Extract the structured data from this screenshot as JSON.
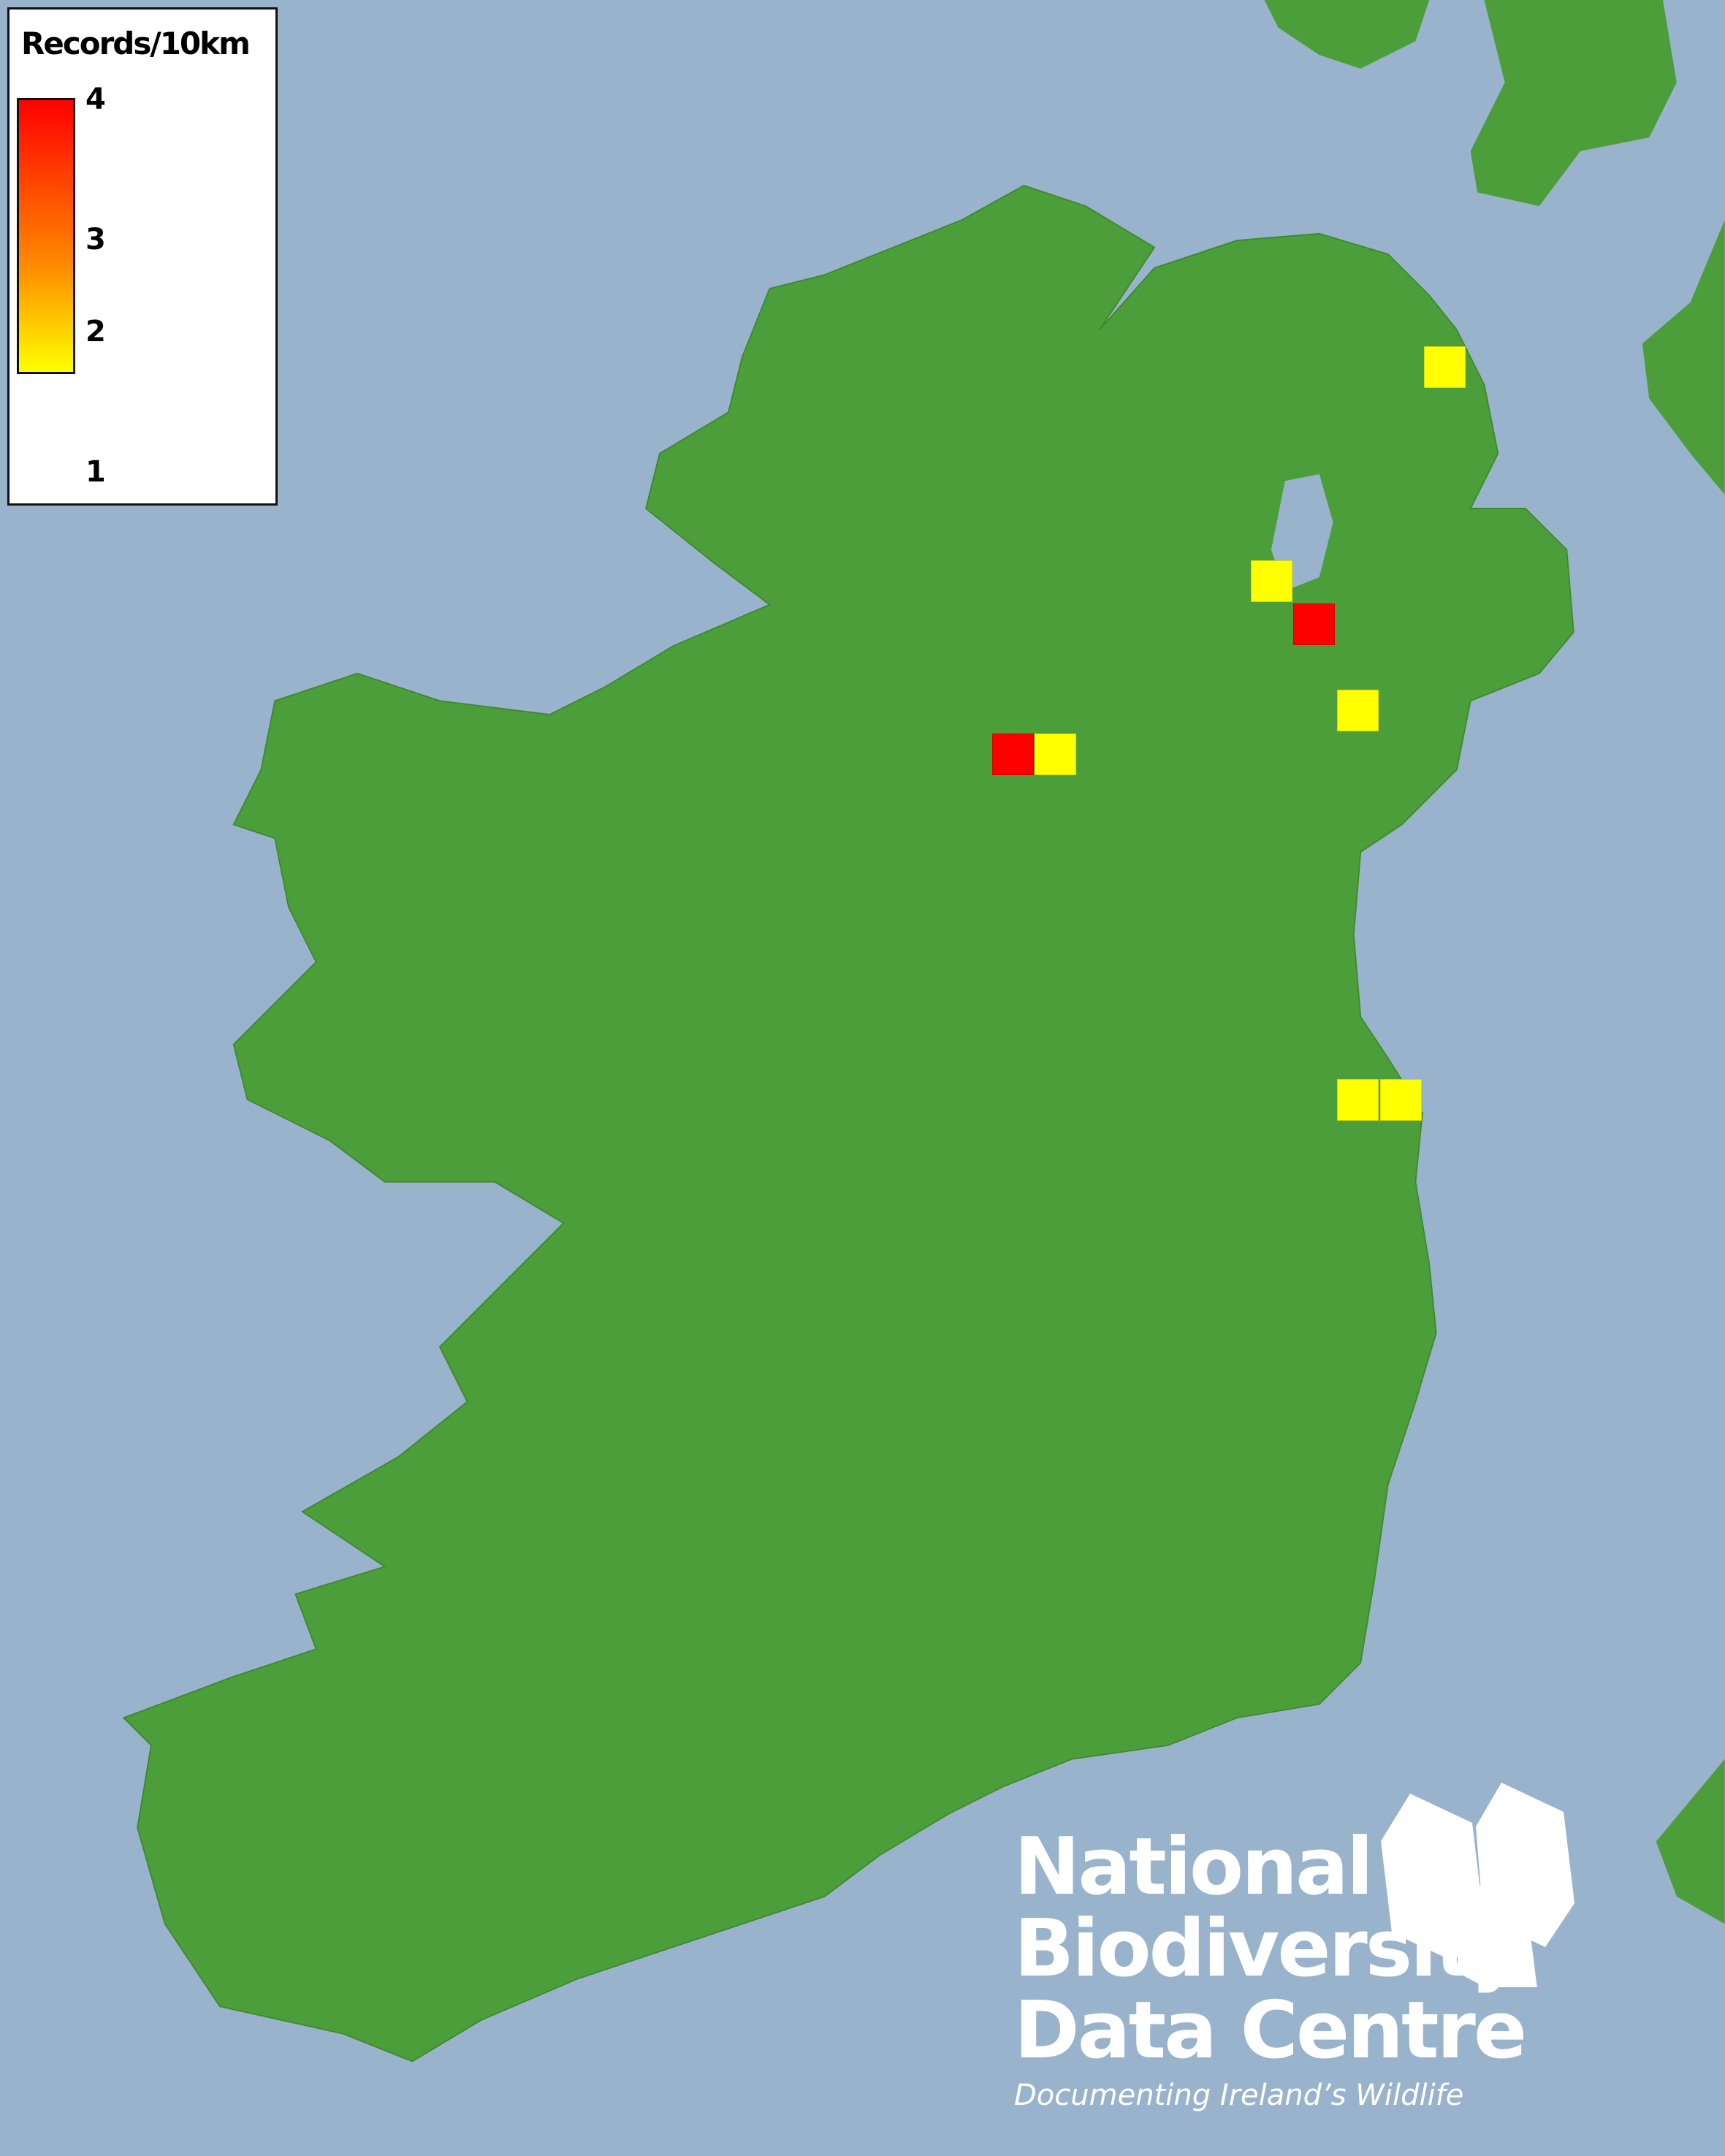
{
  "legend": {
    "title": "Records/10km",
    "ticks": [
      "4",
      "3",
      "2",
      "1"
    ],
    "color_max": "#ff0000",
    "color_mid": "#ff8800",
    "color_min": "#ffff00",
    "range": [
      1,
      4
    ]
  },
  "map": {
    "sea_color": "#99b3cc",
    "land_color": "#4c9e3a",
    "records": [
      {
        "value": 1
      },
      {
        "value": 1
      },
      {
        "value": 4
      },
      {
        "value": 1
      },
      {
        "value": 4
      },
      {
        "value": 1
      },
      {
        "value": 1
      },
      {
        "value": 1
      }
    ]
  },
  "logo": {
    "line1": "National",
    "line2": "Biodiversity",
    "line3": "Data Centre",
    "tagline": "Documenting Ireland’s Wildlife"
  }
}
